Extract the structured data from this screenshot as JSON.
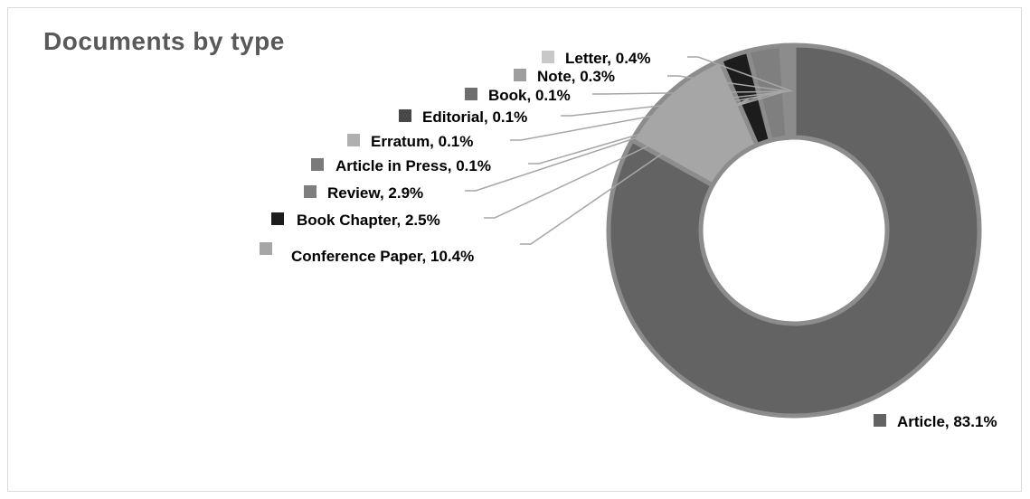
{
  "chart_data": {
    "type": "pie",
    "title": "Documents by type",
    "donut": true,
    "slices": [
      {
        "label": "Article",
        "display": "Article, 83.1%",
        "value": 83.1,
        "color": "#636363"
      },
      {
        "label": "Conference Paper",
        "display": "Conference Paper, 10.4%",
        "value": 10.4,
        "color": "#a6a6a6"
      },
      {
        "label": "Book Chapter",
        "display": "Book Chapter, 2.5%",
        "value": 2.5,
        "color": "#1c1c1c"
      },
      {
        "label": "Review",
        "display": "Review, 2.9%",
        "value": 2.9,
        "color": "#7f7f7f"
      },
      {
        "label": "Article in Press",
        "display": "Article in Press, 0.1%",
        "value": 0.1,
        "color": "#7a7a7a"
      },
      {
        "label": "Erratum",
        "display": "Erratum, 0.1%",
        "value": 0.1,
        "color": "#b0b0b0"
      },
      {
        "label": "Editorial",
        "display": "Editorial, 0.1%",
        "value": 0.1,
        "color": "#484848"
      },
      {
        "label": "Book",
        "display": "Book, 0.1%",
        "value": 0.1,
        "color": "#6e6e6e"
      },
      {
        "label": "Note",
        "display": "Note, 0.3%",
        "value": 0.3,
        "color": "#9e9e9e"
      },
      {
        "label": "Letter",
        "display": "Letter, 0.4%",
        "value": 0.4,
        "color": "#c8c8c8"
      }
    ]
  }
}
